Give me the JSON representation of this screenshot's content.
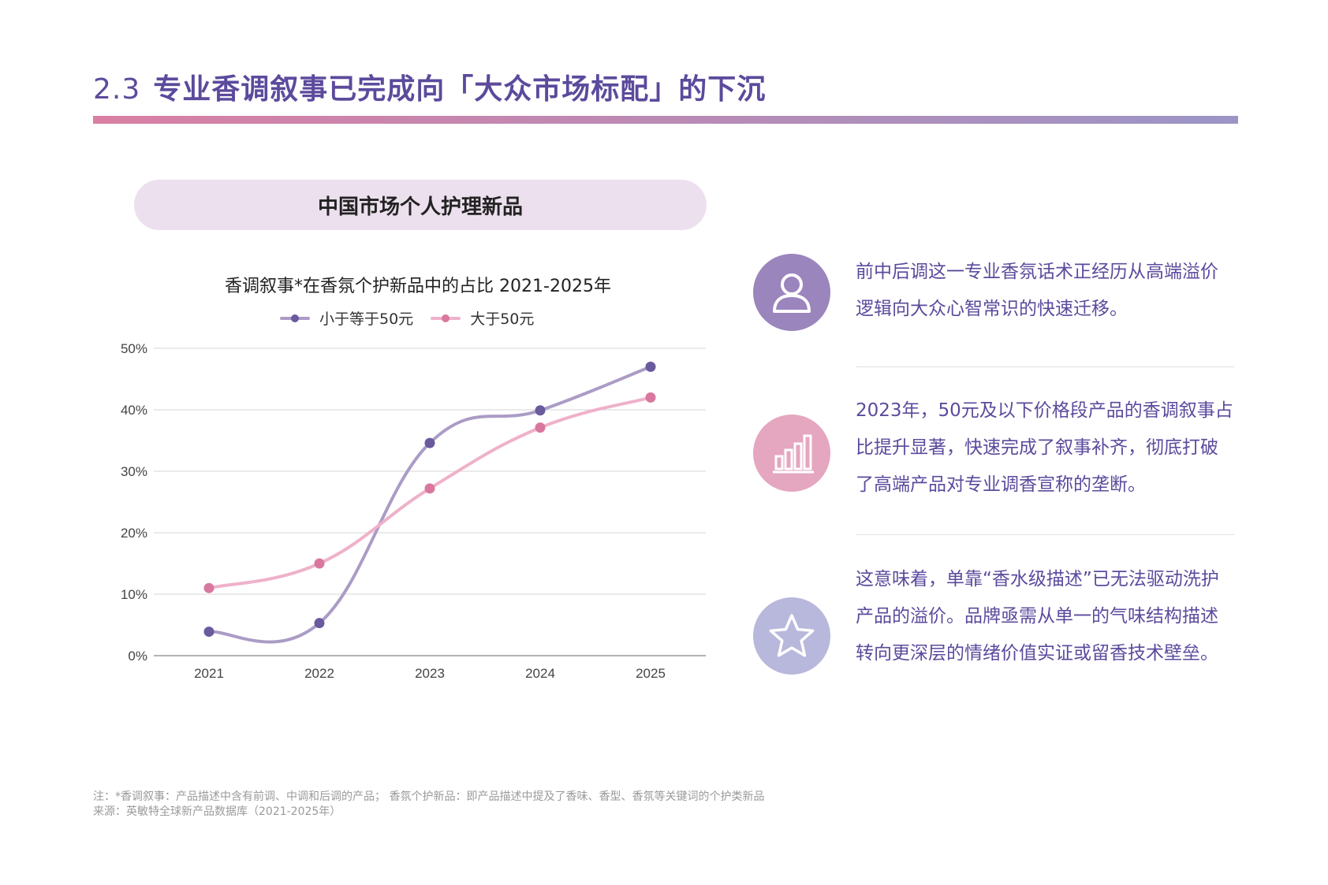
{
  "page": {
    "section_number": "2.3",
    "title": "专业香调叙事已完成向「大众市场标配」的下沉",
    "section_label": "中国市场个人护理新品"
  },
  "chart_data": {
    "type": "line",
    "title": "香调叙事*在香氛个护新品中的占比  2021-2025年",
    "xlabel": "",
    "ylabel": "",
    "x": [
      "2021",
      "2022",
      "2023",
      "2024",
      "2025"
    ],
    "ylim": [
      0,
      50
    ],
    "yticks": [
      "0%",
      "10%",
      "20%",
      "30%",
      "40%",
      "50%"
    ],
    "grid": true,
    "legend_position": "top",
    "smooth": true,
    "series": [
      {
        "name": "小于等于50元",
        "values": [
          3.9,
          5.3,
          34.6,
          39.9,
          47.0
        ],
        "color": "#ab9cc6",
        "marker_color": "#6a5a9e"
      },
      {
        "name": "大于50元",
        "values": [
          11.0,
          15.0,
          27.2,
          37.1,
          42.0
        ],
        "color": "#efb1ca",
        "marker_color": "#d9789e"
      }
    ]
  },
  "insights": [
    {
      "icon": "person-icon",
      "color": "#9b85bd",
      "text": "前中后调这一专业香氛话术正经历从高端溢价逻辑向大众心智常识的快速迁移。"
    },
    {
      "icon": "bar-chart-icon",
      "color": "#e5a6bf",
      "text": "2023年，50元及以下价格段产品的香调叙事占比提升显著，快速完成了叙事补齐，彻底打破了高端产品对专业调香宣称的垄断。"
    },
    {
      "icon": "star-icon",
      "color": "#b8b8dc",
      "text": "这意味着，单靠“香水级描述”已无法驱动洗护产品的溢价。品牌亟需从单一的气味结构描述转向更深层的情绪价值实证或留香技术壁垒。"
    }
  ],
  "footnotes": {
    "note": "注：*香调叙事：产品描述中含有前调、中调和后调的产品；  香氛个护新品：即产品描述中提及了香味、香型、香氛等关键词的个护类新品",
    "source": "来源：英敏特全球新产品数据库（2021-2025年）"
  }
}
